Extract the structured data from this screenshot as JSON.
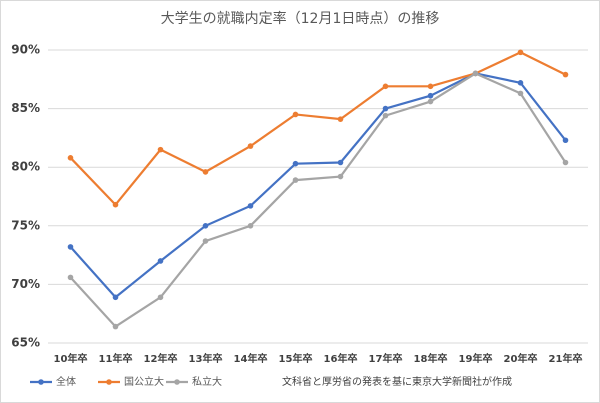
{
  "chart_data": {
    "type": "line",
    "title": "大学生の就職内定率（12月1日時点）の推移",
    "categories": [
      "10年卒",
      "11年卒",
      "12年卒",
      "13年卒",
      "14年卒",
      "15年卒",
      "16年卒",
      "17年卒",
      "18年卒",
      "19年卒",
      "20年卒",
      "21年卒"
    ],
    "series": [
      {
        "name": "全体",
        "color": "#4472c4",
        "values": [
          73.2,
          68.9,
          72.0,
          75.0,
          76.7,
          80.3,
          80.4,
          85.0,
          86.1,
          88.0,
          87.2,
          82.3
        ]
      },
      {
        "name": "国公立大",
        "color": "#ed7d31",
        "values": [
          80.8,
          76.8,
          81.5,
          79.6,
          81.8,
          84.5,
          84.1,
          86.9,
          86.9,
          88.0,
          89.8,
          87.9
        ]
      },
      {
        "name": "私立大",
        "color": "#a5a5a5",
        "values": [
          70.6,
          66.4,
          68.9,
          73.7,
          75.0,
          78.9,
          79.2,
          84.4,
          85.6,
          88.0,
          86.3,
          80.4
        ]
      }
    ],
    "ylim": [
      65,
      90
    ],
    "yticks": [
      {
        "value": 65,
        "label": "65%"
      },
      {
        "value": 70,
        "label": "70%"
      },
      {
        "value": 75,
        "label": "75%"
      },
      {
        "value": 80,
        "label": "80%"
      },
      {
        "value": 85,
        "label": "85%"
      },
      {
        "value": 90,
        "label": "90%"
      }
    ],
    "grid": true,
    "note": "文科省と厚労省の発表を基に東京大学新聞社が作成"
  }
}
